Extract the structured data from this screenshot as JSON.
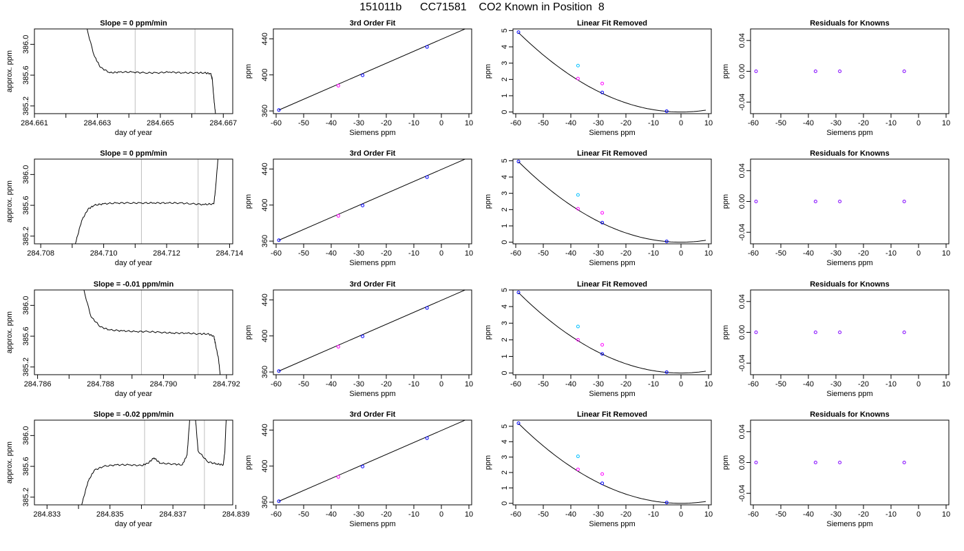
{
  "figure": {
    "title": "151011b      CC71581    CO2 Known in Position  8"
  },
  "chart_data": [
    {
      "type": "line",
      "row": 1,
      "col": 1,
      "title": "Slope =  0  ppm/min",
      "xlabel": "day of year",
      "ylabel": "approx. ppm",
      "xlim": [
        284.661,
        284.6673
      ],
      "ylim": [
        385.1,
        386.2
      ],
      "xticks": [
        284.661,
        284.662,
        284.663,
        284.664,
        284.665,
        284.666,
        284.667
      ],
      "xticklabels": [
        "284.661",
        "",
        "284.663",
        "",
        "284.665",
        "",
        "284.667"
      ],
      "yticks": [
        385.2,
        385.6,
        386.0
      ],
      "yticklabels": [
        "385.2",
        "385.6",
        "386.0"
      ],
      "vlines": [
        284.6642,
        284.6661
      ],
      "x": [
        284.6626,
        284.6629,
        284.6631,
        284.6634,
        284.6637,
        284.6641,
        284.6645,
        284.6649,
        284.6653,
        284.6657,
        284.6661,
        284.6664,
        284.6666,
        284.66665,
        284.6667,
        284.66675
      ],
      "y": [
        386.3,
        385.85,
        385.7,
        385.63,
        385.64,
        385.64,
        385.63,
        385.63,
        385.64,
        385.63,
        385.63,
        385.63,
        385.62,
        385.55,
        385.3,
        385.1
      ]
    },
    {
      "type": "scatter",
      "row": 1,
      "col": 2,
      "title": "3rd Order Fit",
      "xlabel": "Siemens ppm",
      "ylabel": "ppm",
      "xlim": [
        -61,
        11
      ],
      "ylim": [
        357,
        451
      ],
      "xticks": [
        -60,
        -50,
        -40,
        -30,
        -20,
        -10,
        0,
        10
      ],
      "yticks": [
        360,
        400,
        440
      ],
      "yticklabels": [
        "360",
        "400",
        "440"
      ],
      "points": [
        {
          "x": -59,
          "y": 361,
          "color": "#0000ff"
        },
        {
          "x": -37.4,
          "y": 388,
          "color": "#ff00ff"
        },
        {
          "x": -28.6,
          "y": 399.5,
          "color": "#0000ff"
        },
        {
          "x": -5.2,
          "y": 431,
          "color": "#0000ff"
        }
      ],
      "line": {
        "x": [
          -59,
          9
        ],
        "y": [
          361,
          451.5
        ]
      }
    },
    {
      "type": "scatter",
      "row": 1,
      "col": 3,
      "title": "Linear Fit Removed",
      "xlabel": "Siemens ppm",
      "ylabel": "ppm",
      "xlim": [
        -61,
        11
      ],
      "ylim": [
        -0.1,
        5.1
      ],
      "xticks": [
        -60,
        -50,
        -40,
        -30,
        -20,
        -10,
        0,
        10
      ],
      "yticks": [
        0,
        1,
        2,
        3,
        4,
        5
      ],
      "yticklabels": [
        "0",
        "1",
        "2",
        "3",
        "4",
        "5"
      ],
      "points": [
        {
          "x": -59,
          "y": 4.9,
          "color": "#0000ff"
        },
        {
          "x": -37.4,
          "y": 2.85,
          "color": "#00bfff"
        },
        {
          "x": -37.4,
          "y": 2.05,
          "color": "#ff00ff"
        },
        {
          "x": -28.6,
          "y": 1.75,
          "color": "#ff00ff"
        },
        {
          "x": -28.6,
          "y": 1.2,
          "color": "#0000ff"
        },
        {
          "x": -5.2,
          "y": 0.05,
          "color": "#0000ff"
        }
      ],
      "curve_a": 0.0014
    },
    {
      "type": "scatter",
      "row": 1,
      "col": 4,
      "title": "Residuals for Knowns",
      "xlabel": "Siemens ppm",
      "ylabel": "ppm",
      "xlim": [
        -61,
        11
      ],
      "ylim": [
        -0.055,
        0.055
      ],
      "xticks": [
        -60,
        -50,
        -40,
        -30,
        -20,
        -10,
        0,
        10
      ],
      "yticks": [
        -0.04,
        0,
        0.04
      ],
      "yticklabels": [
        "-0.04",
        "0.00",
        "0.04"
      ],
      "points": [
        {
          "x": -59,
          "y": 0,
          "color": "#8000ff"
        },
        {
          "x": -37.4,
          "y": 0,
          "color": "#8000ff"
        },
        {
          "x": -28.6,
          "y": 0,
          "color": "#8000ff"
        },
        {
          "x": -5.2,
          "y": 0,
          "color": "#8000ff"
        }
      ]
    },
    {
      "type": "line",
      "row": 2,
      "col": 1,
      "title": "Slope =  0  ppm/min",
      "xlabel": "day of year",
      "ylabel": "approx. ppm",
      "xlim": [
        284.7078,
        284.7141
      ],
      "ylim": [
        385.1,
        386.2
      ],
      "xticks": [
        284.708,
        284.709,
        284.71,
        284.711,
        284.712,
        284.713,
        284.714
      ],
      "xticklabels": [
        "284.708",
        "",
        "284.710",
        "",
        "284.712",
        "",
        "284.714"
      ],
      "yticks": [
        385.2,
        385.6,
        386.0
      ],
      "yticklabels": [
        "385.2",
        "385.6",
        "386.0"
      ],
      "vlines": [
        284.7112,
        284.713
      ],
      "x": [
        284.7091,
        284.7093,
        284.7095,
        284.7097,
        284.71,
        284.7104,
        284.7108,
        284.7112,
        284.7116,
        284.712,
        284.7124,
        284.7128,
        284.7132,
        284.7135,
        284.71355,
        284.71365
      ],
      "y": [
        385.1,
        385.4,
        385.55,
        385.6,
        385.62,
        385.63,
        385.63,
        385.63,
        385.63,
        385.63,
        385.63,
        385.62,
        385.61,
        385.62,
        385.8,
        386.3
      ]
    },
    {
      "type": "scatter",
      "row": 2,
      "col": 2,
      "title": "3rd Order Fit",
      "xlabel": "Siemens ppm",
      "ylabel": "ppm",
      "xlim": [
        -61,
        11
      ],
      "ylim": [
        357,
        451
      ],
      "xticks": [
        -60,
        -50,
        -40,
        -30,
        -20,
        -10,
        0,
        10
      ],
      "yticks": [
        360,
        400,
        440
      ],
      "yticklabels": [
        "360",
        "400",
        "440"
      ],
      "points": [
        {
          "x": -59,
          "y": 361,
          "color": "#0000ff"
        },
        {
          "x": -37.4,
          "y": 388,
          "color": "#ff00ff"
        },
        {
          "x": -28.6,
          "y": 399.5,
          "color": "#0000ff"
        },
        {
          "x": -5.2,
          "y": 431,
          "color": "#0000ff"
        }
      ],
      "line": {
        "x": [
          -59,
          9
        ],
        "y": [
          361,
          451.5
        ]
      }
    },
    {
      "type": "scatter",
      "row": 2,
      "col": 3,
      "title": "Linear Fit Removed",
      "xlabel": "Siemens ppm",
      "ylabel": "ppm",
      "xlim": [
        -61,
        11
      ],
      "ylim": [
        -0.1,
        5.1
      ],
      "xticks": [
        -60,
        -50,
        -40,
        -30,
        -20,
        -10,
        0,
        10
      ],
      "yticks": [
        0,
        1,
        2,
        3,
        4,
        5
      ],
      "yticklabels": [
        "0",
        "1",
        "2",
        "3",
        "4",
        "5"
      ],
      "points": [
        {
          "x": -59,
          "y": 4.95,
          "color": "#0000ff"
        },
        {
          "x": -37.4,
          "y": 2.9,
          "color": "#00bfff"
        },
        {
          "x": -37.4,
          "y": 2.05,
          "color": "#ff00ff"
        },
        {
          "x": -28.6,
          "y": 1.8,
          "color": "#ff00ff"
        },
        {
          "x": -28.6,
          "y": 1.2,
          "color": "#0000ff"
        },
        {
          "x": -5.2,
          "y": 0.05,
          "color": "#0000ff"
        }
      ],
      "curve_a": 0.00142
    },
    {
      "type": "scatter",
      "row": 2,
      "col": 4,
      "title": "Residuals for Knowns",
      "xlabel": "Siemens ppm",
      "ylabel": "ppm",
      "xlim": [
        -61,
        11
      ],
      "ylim": [
        -0.055,
        0.055
      ],
      "xticks": [
        -60,
        -50,
        -40,
        -30,
        -20,
        -10,
        0,
        10
      ],
      "yticks": [
        -0.04,
        0,
        0.04
      ],
      "yticklabels": [
        "-0.04",
        "0.00",
        "0.04"
      ],
      "points": [
        {
          "x": -59,
          "y": 0,
          "color": "#8000ff"
        },
        {
          "x": -37.4,
          "y": 0,
          "color": "#8000ff"
        },
        {
          "x": -28.6,
          "y": 0,
          "color": "#8000ff"
        },
        {
          "x": -5.2,
          "y": 0,
          "color": "#8000ff"
        }
      ]
    },
    {
      "type": "line",
      "row": 3,
      "col": 1,
      "title": "Slope =  -0.01  ppm/min",
      "xlabel": "day of year",
      "ylabel": "approx. ppm",
      "xlim": [
        284.7859,
        284.7922
      ],
      "ylim": [
        385.1,
        386.2
      ],
      "xticks": [
        284.786,
        284.787,
        284.788,
        284.789,
        284.79,
        284.791,
        284.792
      ],
      "xticklabels": [
        "284.786",
        "",
        "284.788",
        "",
        "284.790",
        "",
        "284.792"
      ],
      "yticks": [
        385.2,
        385.6,
        386.0
      ],
      "yticklabels": [
        "385.2",
        "385.6",
        "386.0"
      ],
      "vlines": [
        284.7893,
        284.7911
      ],
      "x": [
        284.7874,
        284.7877,
        284.788,
        284.7883,
        284.7887,
        284.7891,
        284.7895,
        284.7899,
        284.7903,
        284.7907,
        284.7911,
        284.7914,
        284.7916,
        284.79165,
        284.79175,
        284.7918
      ],
      "y": [
        386.3,
        385.85,
        385.72,
        385.68,
        385.67,
        385.66,
        385.66,
        385.65,
        385.64,
        385.64,
        385.63,
        385.63,
        385.6,
        385.5,
        385.3,
        385.1
      ]
    },
    {
      "type": "scatter",
      "row": 3,
      "col": 2,
      "title": "3rd Order Fit",
      "xlabel": "Siemens ppm",
      "ylabel": "ppm",
      "xlim": [
        -61,
        11
      ],
      "ylim": [
        357,
        451
      ],
      "xticks": [
        -60,
        -50,
        -40,
        -30,
        -20,
        -10,
        0,
        10
      ],
      "yticks": [
        360,
        400,
        440
      ],
      "yticklabels": [
        "360",
        "400",
        "440"
      ],
      "points": [
        {
          "x": -59,
          "y": 361,
          "color": "#0000ff"
        },
        {
          "x": -37.4,
          "y": 388,
          "color": "#ff00ff"
        },
        {
          "x": -28.6,
          "y": 399.5,
          "color": "#0000ff"
        },
        {
          "x": -5.2,
          "y": 431,
          "color": "#0000ff"
        }
      ],
      "line": {
        "x": [
          -59,
          9
        ],
        "y": [
          361,
          451.5
        ]
      }
    },
    {
      "type": "scatter",
      "row": 3,
      "col": 3,
      "title": "Linear Fit Removed",
      "xlabel": "Siemens ppm",
      "ylabel": "ppm",
      "xlim": [
        -61,
        11
      ],
      "ylim": [
        -0.1,
        5.0
      ],
      "xticks": [
        -60,
        -50,
        -40,
        -30,
        -20,
        -10,
        0,
        10
      ],
      "yticks": [
        0,
        1,
        2,
        3,
        4,
        5
      ],
      "yticklabels": [
        "0",
        "1",
        "2",
        "3",
        "4",
        "5"
      ],
      "points": [
        {
          "x": -59,
          "y": 4.85,
          "color": "#0000ff"
        },
        {
          "x": -37.4,
          "y": 2.8,
          "color": "#00bfff"
        },
        {
          "x": -37.4,
          "y": 2.0,
          "color": "#ff00ff"
        },
        {
          "x": -28.6,
          "y": 1.7,
          "color": "#ff00ff"
        },
        {
          "x": -28.6,
          "y": 1.15,
          "color": "#0000ff"
        },
        {
          "x": -5.2,
          "y": 0.05,
          "color": "#0000ff"
        }
      ],
      "curve_a": 0.00139
    },
    {
      "type": "scatter",
      "row": 3,
      "col": 4,
      "title": "Residuals for Knowns",
      "xlabel": "Siemens ppm",
      "ylabel": "ppm",
      "xlim": [
        -61,
        11
      ],
      "ylim": [
        -0.055,
        0.055
      ],
      "xticks": [
        -60,
        -50,
        -40,
        -30,
        -20,
        -10,
        0,
        10
      ],
      "yticks": [
        -0.04,
        0,
        0.04
      ],
      "yticklabels": [
        "-0.04",
        "0.00",
        "0.04"
      ],
      "points": [
        {
          "x": -59,
          "y": 0,
          "color": "#8000ff"
        },
        {
          "x": -37.4,
          "y": 0,
          "color": "#8000ff"
        },
        {
          "x": -28.6,
          "y": 0,
          "color": "#8000ff"
        },
        {
          "x": -5.2,
          "y": 0,
          "color": "#8000ff"
        }
      ]
    },
    {
      "type": "line",
      "row": 4,
      "col": 1,
      "title": "Slope =  -0.02  ppm/min",
      "xlabel": "day of year",
      "ylabel": "approx. ppm",
      "xlim": [
        284.8326,
        284.8389
      ],
      "ylim": [
        385.1,
        386.2
      ],
      "xticks": [
        284.833,
        284.834,
        284.835,
        284.836,
        284.837,
        284.838,
        284.839
      ],
      "xticklabels": [
        "284.833",
        "",
        "284.835",
        "",
        "284.837",
        "",
        "284.839"
      ],
      "yticks": [
        385.2,
        385.6,
        386.0
      ],
      "yticklabels": [
        "385.2",
        "385.6",
        "386.0"
      ],
      "vlines": [
        284.8361,
        284.838
      ],
      "x": [
        284.8341,
        284.8343,
        284.8345,
        284.8348,
        284.8352,
        284.8356,
        284.836,
        284.8362,
        284.8364,
        284.8366,
        284.837,
        284.8373,
        284.83745,
        284.83755,
        284.8377,
        284.8378,
        284.8381,
        284.8384,
        284.8386,
        284.83865,
        284.8387
      ],
      "y": [
        385.1,
        385.4,
        385.55,
        385.6,
        385.62,
        385.62,
        385.61,
        385.64,
        385.71,
        385.64,
        385.63,
        385.62,
        385.75,
        386.3,
        386.3,
        385.8,
        385.66,
        385.63,
        385.62,
        385.8,
        386.3
      ]
    },
    {
      "type": "scatter",
      "row": 4,
      "col": 2,
      "title": "3rd Order Fit",
      "xlabel": "Siemens ppm",
      "ylabel": "ppm",
      "xlim": [
        -61,
        11
      ],
      "ylim": [
        357,
        451
      ],
      "xticks": [
        -60,
        -50,
        -40,
        -30,
        -20,
        -10,
        0,
        10
      ],
      "yticks": [
        360,
        400,
        440
      ],
      "yticklabels": [
        "360",
        "400",
        "440"
      ],
      "points": [
        {
          "x": -59,
          "y": 361,
          "color": "#0000ff"
        },
        {
          "x": -37.4,
          "y": 388,
          "color": "#ff00ff"
        },
        {
          "x": -28.6,
          "y": 399.5,
          "color": "#0000ff"
        },
        {
          "x": -5.2,
          "y": 431,
          "color": "#0000ff"
        }
      ],
      "line": {
        "x": [
          -59,
          9
        ],
        "y": [
          361,
          451.5
        ]
      }
    },
    {
      "type": "scatter",
      "row": 4,
      "col": 3,
      "title": "Linear Fit Removed",
      "xlabel": "Siemens ppm",
      "ylabel": "ppm",
      "xlim": [
        -61,
        11
      ],
      "ylim": [
        -0.1,
        5.4
      ],
      "xticks": [
        -60,
        -50,
        -40,
        -30,
        -20,
        -10,
        0,
        10
      ],
      "yticks": [
        0,
        1,
        2,
        3,
        4,
        5
      ],
      "yticklabels": [
        "0",
        "1",
        "2",
        "3",
        "4",
        "5"
      ],
      "points": [
        {
          "x": -59,
          "y": 5.2,
          "color": "#0000ff"
        },
        {
          "x": -37.4,
          "y": 3.05,
          "color": "#00bfff"
        },
        {
          "x": -37.4,
          "y": 2.2,
          "color": "#ff00ff"
        },
        {
          "x": -28.6,
          "y": 1.9,
          "color": "#ff00ff"
        },
        {
          "x": -28.6,
          "y": 1.3,
          "color": "#0000ff"
        },
        {
          "x": -5.2,
          "y": 0.05,
          "color": "#0000ff"
        }
      ],
      "curve_a": 0.00149
    },
    {
      "type": "scatter",
      "row": 4,
      "col": 4,
      "title": "Residuals for Knowns",
      "xlabel": "Siemens ppm",
      "ylabel": "ppm",
      "xlim": [
        -61,
        11
      ],
      "ylim": [
        -0.055,
        0.055
      ],
      "xticks": [
        -60,
        -50,
        -40,
        -30,
        -20,
        -10,
        0,
        10
      ],
      "yticks": [
        -0.04,
        0,
        0.04
      ],
      "yticklabels": [
        "-0.04",
        "0.00",
        "0.04"
      ],
      "points": [
        {
          "x": -59,
          "y": 0,
          "color": "#8000ff"
        },
        {
          "x": -37.4,
          "y": 0,
          "color": "#8000ff"
        },
        {
          "x": -28.6,
          "y": 0,
          "color": "#8000ff"
        },
        {
          "x": -5.2,
          "y": 0,
          "color": "#8000ff"
        }
      ]
    }
  ]
}
